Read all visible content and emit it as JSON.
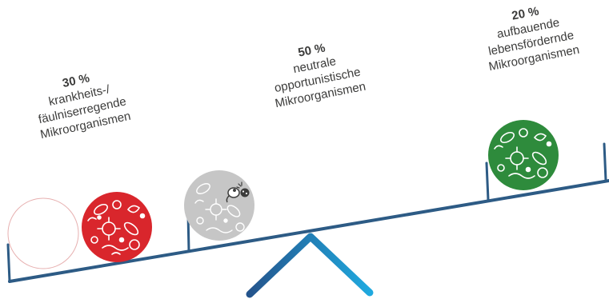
{
  "groups": [
    {
      "percent": "30 %",
      "lines": [
        "krankheits-/",
        "fäulniserregende",
        "Mikroorganismen"
      ],
      "color": "#d9262c"
    },
    {
      "percent": "50 %",
      "lines": [
        "neutrale",
        "opportunistische",
        "Mikroorganismen"
      ],
      "color": "#c6c6c6"
    },
    {
      "percent": "20 %",
      "lines": [
        "aufbauende",
        "lebensfördernde",
        "Mikroorganismen"
      ],
      "color": "#2e8b3c"
    }
  ],
  "colors": {
    "beam": "#2d5b85",
    "fulcrum_start": "#24548c",
    "fulcrum_end": "#1fa9df",
    "text": "#3c3c3b",
    "empty_circle_outline": "#e7b0b0"
  },
  "icons": [
    "microbe-cluster-icon",
    "bacteria-icon",
    "virus-icon"
  ]
}
